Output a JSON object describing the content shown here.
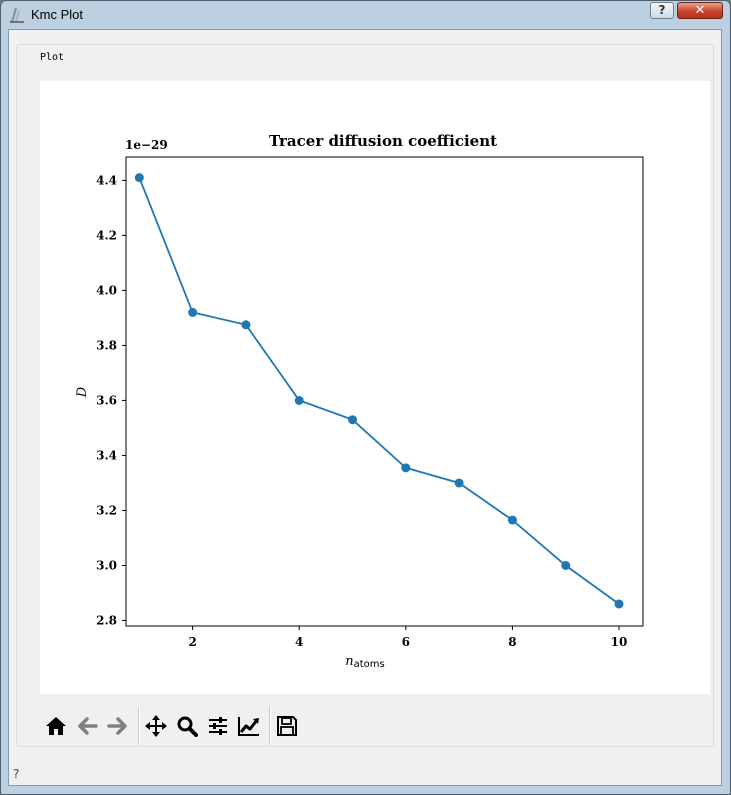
{
  "window": {
    "title": "Kmc Plot",
    "help_label": "?",
    "close_label": "✕"
  },
  "group": {
    "title": "Plot"
  },
  "status": {
    "help_label": "?"
  },
  "toolbar": {
    "buttons": [
      {
        "name": "home-icon"
      },
      {
        "name": "back-arrow-icon"
      },
      {
        "name": "forward-arrow-icon"
      },
      {
        "name": "pan-icon"
      },
      {
        "name": "zoom-icon"
      },
      {
        "name": "subplots-config-icon"
      },
      {
        "name": "edit-axis-icon"
      },
      {
        "name": "save-icon"
      }
    ]
  },
  "chart_data": {
    "type": "line",
    "title": "Tracer diffusion coefficient",
    "xlabel": "n",
    "xlabel_sub": "atoms",
    "ylabel": "D",
    "y_offset_label": "1e−29",
    "x": [
      1,
      2,
      3,
      4,
      5,
      6,
      7,
      8,
      9,
      10
    ],
    "series": [
      {
        "values": [
          4.41,
          3.92,
          3.875,
          3.6,
          3.53,
          3.355,
          3.3,
          3.165,
          3.0,
          2.86
        ],
        "color": "#1f77b4"
      }
    ],
    "xlim": [
      0.75,
      10.45
    ],
    "ylim": [
      2.78,
      4.485
    ],
    "xticks": [
      2,
      4,
      6,
      8,
      10
    ],
    "xtick_labels": [
      "2",
      "4",
      "6",
      "8",
      "10"
    ],
    "yticks": [
      2.8,
      3.0,
      3.2,
      3.4,
      3.6,
      3.8,
      4.0,
      4.2,
      4.4
    ],
    "ytick_labels": [
      "2.8",
      "3.0",
      "3.2",
      "3.4",
      "3.6",
      "3.8",
      "4.0",
      "4.2",
      "4.4"
    ],
    "grid": false,
    "legend": "none"
  }
}
